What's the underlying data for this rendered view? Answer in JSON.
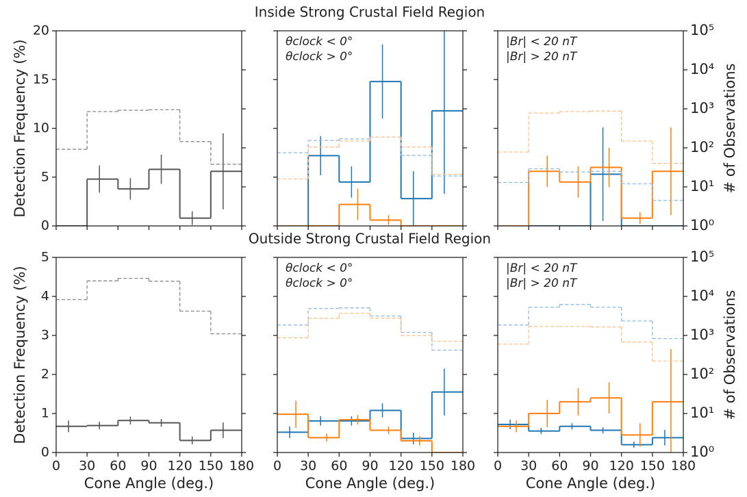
{
  "chart_data": [
    {
      "type": "histogram",
      "title": "Inside Strong Crustal Field Region",
      "ylabel": "Detection Frequency (%)",
      "bins": [
        0,
        30,
        60,
        90,
        120,
        150,
        180
      ],
      "xlim": [
        0,
        180
      ],
      "xticks": [
        0,
        30,
        60,
        90,
        120,
        150,
        180
      ],
      "xtick_labels": false,
      "ylim": [
        0,
        20
      ],
      "yticks": [
        0,
        5,
        10,
        15,
        20
      ],
      "ytick_labels": true,
      "y2lim": [
        1,
        100000
      ],
      "y2scale": "log",
      "y2ticks": [
        1,
        10,
        100,
        1000,
        10000,
        100000
      ],
      "y2tick_labels": false,
      "series": [
        {
          "color": "#555555",
          "values": [
            0,
            4.8,
            3.8,
            5.8,
            0.8,
            5.6
          ],
          "errors": [
            null,
            1.4,
            1.1,
            1.5,
            0.7,
            3.9
          ]
        },
        {
          "color": "#888888",
          "axis": "y2",
          "linestyle": "dashed",
          "values": [
            92,
            850,
            920,
            950,
            145,
            38
          ]
        }
      ]
    },
    {
      "type": "histogram",
      "legend": "upper left",
      "bins": [
        0,
        30,
        60,
        90,
        120,
        150,
        180
      ],
      "xlim": [
        0,
        180
      ],
      "xticks": [
        0,
        30,
        60,
        90,
        120,
        150,
        180
      ],
      "xtick_labels": false,
      "ylim": [
        0,
        20
      ],
      "yticks": [
        0,
        5,
        10,
        15,
        20
      ],
      "ytick_labels": false,
      "y2lim": [
        1,
        100000
      ],
      "y2scale": "log",
      "y2ticks": [
        1,
        10,
        100,
        1000,
        10000,
        100000
      ],
      "y2tick_labels": false,
      "series": [
        {
          "name": "θclock < 0°",
          "color": "#1f77b4",
          "values": [
            0,
            7.2,
            4.5,
            14.8,
            2.8,
            11.8
          ],
          "errors": [
            null,
            2.0,
            1.6,
            3.8,
            2.8,
            8.5
          ]
        },
        {
          "name": "θclock > 0°",
          "color": "#ff7f0e",
          "values": [
            0,
            0,
            2.2,
            0.6,
            0,
            0
          ],
          "errors": [
            null,
            null,
            1.6,
            0.5,
            null,
            null
          ]
        },
        {
          "color": "#8fbbd9",
          "axis": "y2",
          "linestyle": "dashed",
          "values": [
            75,
            155,
            170,
            190,
            64,
            19
          ]
        },
        {
          "color": "#ffbf86",
          "axis": "y2",
          "linestyle": "dashed",
          "values": [
            16,
            105,
            150,
            190,
            105,
            21
          ]
        }
      ]
    },
    {
      "type": "histogram",
      "legend": "upper left",
      "y2label": "# of Observations",
      "bins": [
        0,
        30,
        60,
        90,
        120,
        150,
        180
      ],
      "xlim": [
        0,
        180
      ],
      "xticks": [
        0,
        30,
        60,
        90,
        120,
        150,
        180
      ],
      "xtick_labels": false,
      "ylim": [
        0,
        20
      ],
      "yticks": [
        0,
        5,
        10,
        15,
        20
      ],
      "ytick_labels": false,
      "y2lim": [
        1,
        100000
      ],
      "y2scale": "log",
      "y2tick_labels": true,
      "y2ticks": [
        {
          "value": 1,
          "label": "10⁰"
        },
        {
          "value": 10,
          "label": "10¹"
        },
        {
          "value": 100,
          "label": "10²"
        },
        {
          "value": 1000,
          "label": "10³"
        },
        {
          "value": 10000,
          "label": "10⁴"
        },
        {
          "value": 100000,
          "label": "10⁵"
        }
      ],
      "series": [
        {
          "name": "|Br| < 20 nT",
          "color": "#1f77b4",
          "values": [
            0,
            0,
            0,
            5.3,
            0,
            0
          ],
          "errors": [
            null,
            null,
            null,
            4.8,
            null,
            null
          ]
        },
        {
          "name": "|Br| > 20 nT",
          "color": "#ff7f0e",
          "values": [
            0,
            5.6,
            4.5,
            6.0,
            0.8,
            5.6
          ],
          "errors": [
            null,
            1.6,
            1.6,
            2.0,
            0.6,
            4.5
          ]
        },
        {
          "color": "#8fbbd9",
          "axis": "y2",
          "linestyle": "dashed",
          "values": [
            13,
            29,
            24,
            25,
            12,
            4.5
          ]
        },
        {
          "color": "#ffbf86",
          "axis": "y2",
          "linestyle": "dashed",
          "values": [
            78,
            780,
            850,
            880,
            150,
            40
          ]
        }
      ]
    },
    {
      "type": "histogram",
      "title": "Outside Strong Crustal Field Region",
      "ylabel": "Detection Frequency (%)",
      "xlabel": "Cone Angle (deg.)",
      "bins": [
        0,
        30,
        60,
        90,
        120,
        150,
        180
      ],
      "xlim": [
        0,
        180
      ],
      "xticks": [
        0,
        30,
        60,
        90,
        120,
        150,
        180
      ],
      "xtick_labels": true,
      "ylim": [
        0,
        5
      ],
      "yticks": [
        0,
        1,
        2,
        3,
        4,
        5
      ],
      "ytick_labels": true,
      "y2lim": [
        1,
        100000
      ],
      "y2scale": "log",
      "y2ticks": [
        1,
        10,
        100,
        1000,
        10000,
        100000
      ],
      "y2tick_labels": false,
      "series": [
        {
          "color": "#555555",
          "values": [
            0.67,
            0.69,
            0.82,
            0.76,
            0.31,
            0.57
          ],
          "errors": [
            0.15,
            0.1,
            0.1,
            0.1,
            0.1,
            0.2
          ]
        },
        {
          "color": "#888888",
          "axis": "y2",
          "linestyle": "dashed",
          "values": [
            8300,
            25000,
            29000,
            24500,
            4200,
            1100
          ]
        }
      ]
    },
    {
      "type": "histogram",
      "legend": "upper left",
      "xlabel": "Cone Angle (deg.)",
      "bins": [
        0,
        30,
        60,
        90,
        120,
        150,
        180
      ],
      "xlim": [
        0,
        180
      ],
      "xticks": [
        0,
        30,
        60,
        90,
        120,
        150,
        180
      ],
      "xtick_labels": true,
      "ylim": [
        0,
        5
      ],
      "yticks": [
        0,
        1,
        2,
        3,
        4,
        5
      ],
      "ytick_labels": false,
      "y2lim": [
        1,
        100000
      ],
      "y2scale": "log",
      "y2ticks": [
        1,
        10,
        100,
        1000,
        10000,
        100000
      ],
      "y2tick_labels": false,
      "series": [
        {
          "name": "θclock < 0°",
          "color": "#1f77b4",
          "values": [
            0.52,
            0.81,
            0.81,
            1.08,
            0.36,
            1.55
          ],
          "errors": [
            0.15,
            0.12,
            0.12,
            0.18,
            0.15,
            0.6
          ]
        },
        {
          "name": "θclock > 0°",
          "color": "#ff7f0e",
          "values": [
            0.98,
            0.38,
            0.84,
            0.57,
            0.3,
            0
          ],
          "errors": [
            0.35,
            0.1,
            0.12,
            0.1,
            0.12,
            null
          ]
        },
        {
          "color": "#8fbbd9",
          "axis": "y2",
          "linestyle": "dashed",
          "values": [
            1850,
            4900,
            5100,
            3150,
            1200,
            420
          ]
        },
        {
          "color": "#ffbf86",
          "axis": "y2",
          "linestyle": "dashed",
          "values": [
            870,
            2750,
            3700,
            2750,
            1000,
            710
          ]
        }
      ]
    },
    {
      "type": "histogram",
      "legend": "upper left",
      "xlabel": "Cone Angle (deg.)",
      "y2label": "# of Observations",
      "bins": [
        0,
        30,
        60,
        90,
        120,
        150,
        180
      ],
      "xlim": [
        0,
        180
      ],
      "xticks": [
        0,
        30,
        60,
        90,
        120,
        150,
        180
      ],
      "xtick_labels": true,
      "ylim": [
        0,
        5
      ],
      "yticks": [
        0,
        1,
        2,
        3,
        4,
        5
      ],
      "ytick_labels": false,
      "y2lim": [
        1,
        100000
      ],
      "y2scale": "log",
      "y2tick_labels": true,
      "y2ticks": [
        {
          "value": 1,
          "label": "10⁰"
        },
        {
          "value": 10,
          "label": "10¹"
        },
        {
          "value": 100,
          "label": "10²"
        },
        {
          "value": 1000,
          "label": "10³"
        },
        {
          "value": 10000,
          "label": "10⁴"
        },
        {
          "value": 100000,
          "label": "10⁵"
        }
      ],
      "series": [
        {
          "name": "|Br| < 20 nT",
          "color": "#1f77b4",
          "values": [
            0.72,
            0.55,
            0.67,
            0.57,
            0.2,
            0.38
          ],
          "errors": [
            0.12,
            0.08,
            0.08,
            0.08,
            0.08,
            0.2
          ]
        },
        {
          "name": "|Br| > 20 nT",
          "color": "#ff7f0e",
          "values": [
            0.67,
            1.0,
            1.3,
            1.4,
            0.45,
            1.3
          ],
          "errors": [
            0.15,
            0.35,
            0.35,
            0.4,
            0.3,
            1.35
          ]
        },
        {
          "color": "#8fbbd9",
          "axis": "y2",
          "linestyle": "dashed",
          "values": [
            1850,
            5300,
            6200,
            5300,
            2350,
            830
          ]
        },
        {
          "color": "#ffbf86",
          "axis": "y2",
          "linestyle": "dashed",
          "values": [
            600,
            1700,
            1700,
            1650,
            680,
            220
          ]
        }
      ]
    }
  ]
}
